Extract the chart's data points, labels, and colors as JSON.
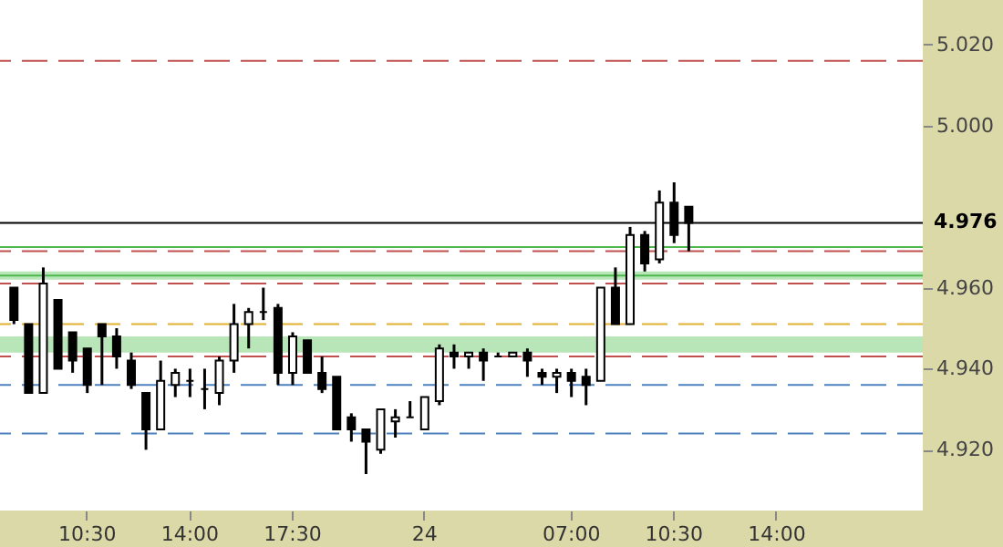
{
  "chart_data": {
    "type": "candlestick",
    "categories": [
      null,
      null,
      null,
      null,
      null,
      "10:30",
      null,
      null,
      null,
      null,
      null,
      null,
      "14:00",
      null,
      null,
      null,
      null,
      null,
      null,
      "17:30",
      null,
      null,
      null,
      null,
      null,
      null,
      null,
      null,
      "24",
      null,
      null,
      null,
      null,
      null,
      null,
      null,
      null,
      null,
      "07:00",
      null,
      null,
      null,
      null,
      null,
      null,
      "10:30",
      null,
      null,
      null,
      null,
      null,
      null,
      "14:00",
      null,
      null,
      null,
      null,
      null,
      null,
      null,
      null,
      null
    ],
    "ohlc": [
      [
        4.96,
        4.96,
        4.951,
        4.952
      ],
      [
        4.951,
        4.951,
        4.934,
        4.934
      ],
      [
        4.934,
        4.965,
        4.934,
        4.961
      ],
      [
        4.957,
        4.957,
        4.94,
        4.94
      ],
      [
        4.949,
        4.949,
        4.939,
        4.942
      ],
      [
        4.945,
        4.945,
        4.934,
        4.936
      ],
      [
        4.951,
        4.951,
        4.936,
        4.948
      ],
      [
        4.948,
        4.95,
        4.94,
        4.943
      ],
      [
        4.942,
        4.944,
        4.935,
        4.936
      ],
      [
        4.934,
        4.934,
        4.92,
        4.925
      ],
      [
        4.925,
        4.942,
        4.925,
        4.937
      ],
      [
        4.936,
        4.94,
        4.933,
        4.939
      ],
      [
        4.937,
        4.94,
        4.933,
        4.937
      ],
      [
        4.935,
        4.94,
        4.93,
        4.935
      ],
      [
        4.934,
        4.943,
        4.931,
        4.942
      ],
      [
        4.942,
        4.956,
        4.939,
        4.951
      ],
      [
        4.951,
        4.955,
        4.945,
        4.954
      ],
      [
        4.954,
        4.96,
        4.952,
        4.954
      ],
      [
        4.955,
        4.956,
        4.936,
        4.939
      ],
      [
        4.939,
        4.949,
        4.936,
        4.948
      ],
      [
        4.947,
        4.947,
        4.939,
        4.939
      ],
      [
        4.939,
        4.943,
        4.934,
        4.935
      ],
      [
        4.938,
        4.938,
        4.925,
        4.925
      ],
      [
        4.928,
        4.929,
        4.922,
        4.925
      ],
      [
        4.925,
        4.925,
        4.914,
        4.922
      ],
      [
        4.92,
        4.93,
        4.919,
        4.93
      ],
      [
        4.927,
        4.93,
        4.923,
        4.928
      ],
      [
        4.928,
        4.932,
        4.928,
        4.928
      ],
      [
        4.925,
        4.933,
        4.925,
        4.933
      ],
      [
        4.932,
        4.946,
        4.931,
        4.945
      ],
      [
        4.944,
        4.946,
        4.94,
        4.943
      ],
      [
        4.943,
        4.944,
        4.94,
        4.944
      ],
      [
        4.944,
        4.945,
        4.937,
        4.942
      ],
      [
        4.943,
        4.944,
        4.943,
        4.943
      ],
      [
        4.943,
        4.944,
        4.943,
        4.944
      ],
      [
        4.944,
        4.945,
        4.938,
        4.942
      ],
      [
        4.939,
        4.94,
        4.936,
        4.938
      ],
      [
        4.938,
        4.94,
        4.934,
        4.939
      ],
      [
        4.939,
        4.94,
        4.933,
        4.937
      ],
      [
        4.938,
        4.94,
        4.931,
        4.936
      ],
      [
        4.937,
        4.96,
        4.937,
        4.96
      ],
      [
        4.96,
        4.965,
        4.951,
        4.951
      ],
      [
        4.951,
        4.975,
        4.951,
        4.973
      ],
      [
        4.973,
        4.974,
        4.964,
        4.966
      ],
      [
        4.967,
        4.984,
        4.966,
        4.981
      ],
      [
        4.981,
        4.986,
        4.971,
        4.973
      ],
      [
        4.98,
        4.98,
        4.969,
        4.976
      ],
      null,
      null,
      null,
      null,
      null,
      null,
      null,
      null,
      null,
      null,
      null,
      null,
      null,
      null,
      null
    ],
    "ylim": [
      4.905,
      5.031
    ],
    "yticks": [
      {
        "value": 4.92,
        "label": "4.920"
      },
      {
        "value": 4.94,
        "label": "4.940"
      },
      {
        "value": 4.96,
        "label": "4.960"
      },
      {
        "value": 5.0,
        "label": "5.000"
      },
      {
        "value": 5.02,
        "label": "5.020"
      }
    ],
    "ref_lines": [
      {
        "axis": "y",
        "value": 5.016,
        "label": null,
        "color": "#c0504d",
        "line_style": "dashed"
      },
      {
        "axis": "y",
        "value": 4.969,
        "label": null,
        "color": "#c0504d",
        "line_style": "dashed"
      },
      {
        "axis": "y",
        "value": 4.961,
        "label": null,
        "color": "#c0504d",
        "line_style": "dashed"
      },
      {
        "axis": "y",
        "value": 4.951,
        "label": null,
        "color": "#e0b030",
        "line_style": "dashed"
      },
      {
        "axis": "y",
        "value": 4.943,
        "label": null,
        "color": "#c0504d",
        "line_style": "dashed"
      },
      {
        "axis": "y",
        "value": 4.936,
        "label": null,
        "color": "#4f81bd",
        "line_style": "dashed"
      },
      {
        "axis": "y",
        "value": 4.924,
        "label": null,
        "color": "#4f81bd",
        "line_style": "dashed"
      },
      {
        "axis": "y",
        "value": 4.97,
        "label": null,
        "color": "#4cb84c",
        "line_style": "solid"
      },
      {
        "axis": "y",
        "value": 4.963,
        "label": null,
        "color": "#4cb84c",
        "line_style": "solid"
      },
      {
        "axis": "y",
        "value": 4.976,
        "label": "4.976",
        "color": "#000000",
        "line_style": "solid"
      }
    ],
    "bands": [
      {
        "axis": "y",
        "from": 4.962,
        "to": 4.964,
        "label": null,
        "color": "#a8e0a8"
      },
      {
        "axis": "y",
        "from": 4.944,
        "to": 4.948,
        "label": null,
        "color": "#a8e0a8"
      }
    ],
    "grid": false
  }
}
